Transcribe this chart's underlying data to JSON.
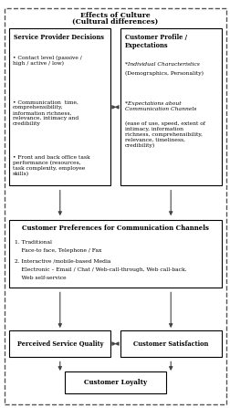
{
  "title_line1": "Effects of Culture",
  "title_line2": "(Cultural differences)",
  "bg_color": "#ffffff",
  "spd_title": "Service Provider Decisions",
  "spd_b1": "Contact level (passive /\nhigh / active / low)",
  "spd_b2": "Communication  time,\ncomprehensibility,\ninformation richness,\nrelevance, intimacy and\ncredibility",
  "spd_b3": "Front and back office task\nperformance (resources,\ntask complexity, employee\nskills)",
  "cpe_title": "Customer Profile /\nExpectations",
  "cpe_t1i": "*Individual Characteristics",
  "cpe_t1n": "(Demographics, Personality)",
  "cpe_t2i": "*Expectations about\nCommunication Channels",
  "cpe_t2n": "(ease of use, speed, extent of\nintimacy, information\nrichness, comprehensibility,\nrelevance, timeliness,\ncredibility)",
  "cpcc_title": "Customer Preferences for Communication Channels",
  "cpcc_line1": "1. Traditional",
  "cpcc_line2": "    Face-to face, Telephone / Fax",
  "cpcc_line3": "2. Interactive /mobile-based Media",
  "cpcc_line4": "    Electronic – Email / Chat / Web-call-through, Web call-back,",
  "cpcc_line5": "    Web self-service",
  "psq_title": "Perceived Service Quality",
  "cs_title": "Customer Satisfaction",
  "cl_title": "Customer Loyalty"
}
